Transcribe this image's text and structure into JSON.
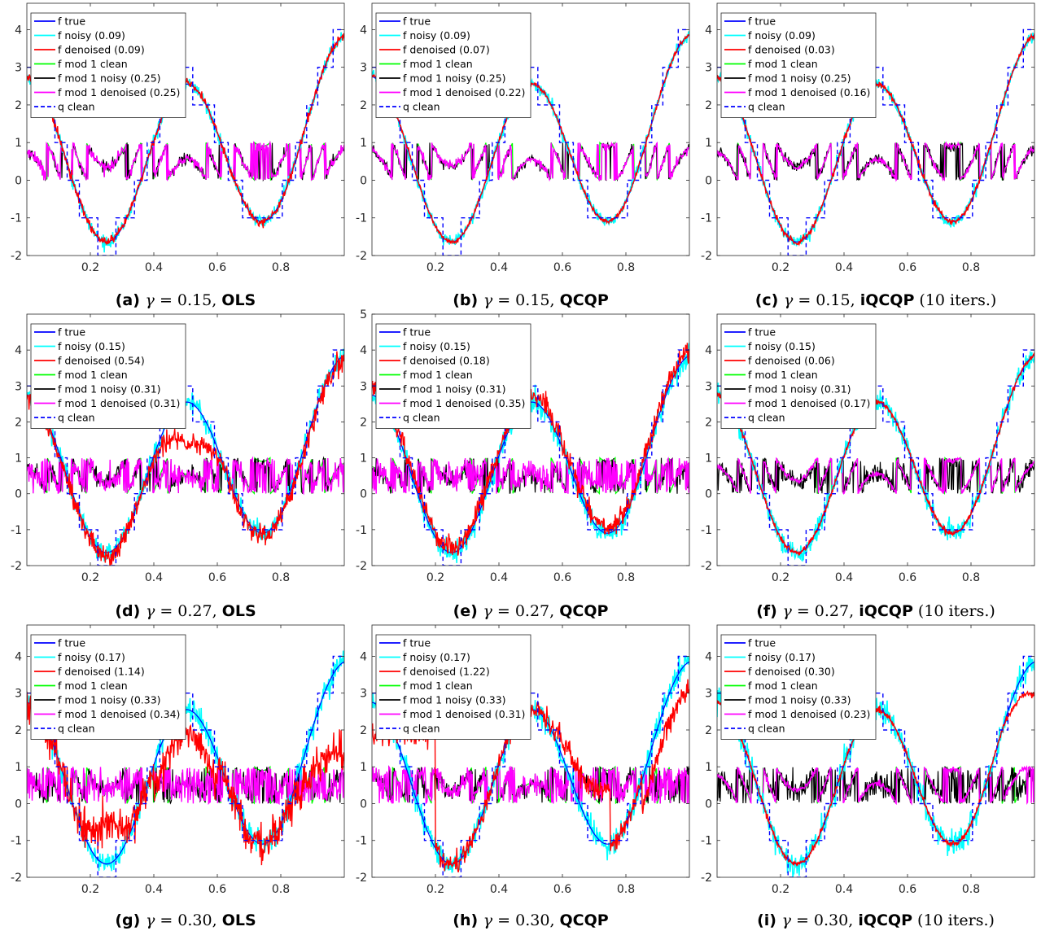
{
  "colors": {
    "f_true": "#0000ff",
    "f_noisy": "#00ffff",
    "f_denoised": "#ff0000",
    "mod_clean": "#00ff00",
    "mod_noisy": "#000000",
    "mod_denoised": "#ff00ff",
    "q_clean": "#0000ff"
  },
  "chart_data": [
    {
      "type": "line",
      "caption": {
        "label": "(a)",
        "gamma": "0.15",
        "method": "OLS",
        "extra": ""
      },
      "xlim": [
        0,
        1
      ],
      "ylim": [
        -2,
        4.7
      ],
      "xticks": [
        "0.2",
        "0.4",
        "0.6",
        "0.8"
      ],
      "yticks": [
        "-2",
        "-1",
        "0",
        "1",
        "2",
        "3",
        "4"
      ],
      "legend_position": "top-left",
      "legend": [
        "f true",
        "f noisy (0.09)",
        "f denoised (0.09)",
        "f mod 1 clean",
        "f mod 1 noisy (0.25)",
        "f mod 1 denoised (0.25)",
        "q clean"
      ]
    },
    {
      "type": "line",
      "caption": {
        "label": "(b)",
        "gamma": "0.15",
        "method": "QCQP",
        "extra": ""
      },
      "xlim": [
        0,
        1
      ],
      "ylim": [
        -2,
        4.7
      ],
      "xticks": [
        "0.2",
        "0.4",
        "0.6",
        "0.8"
      ],
      "yticks": [
        "-2",
        "-1",
        "0",
        "1",
        "2",
        "3",
        "4"
      ],
      "legend_position": "top-left",
      "legend": [
        "f true",
        "f noisy (0.09)",
        "f denoised (0.07)",
        "f mod 1 clean",
        "f mod 1 noisy (0.25)",
        "f mod 1 denoised (0.22)",
        "q clean"
      ]
    },
    {
      "type": "line",
      "caption": {
        "label": "(c)",
        "gamma": "0.15",
        "method": "iQCQP",
        "extra": "(10 iters.)"
      },
      "xlim": [
        0,
        1
      ],
      "ylim": [
        -2,
        4.7
      ],
      "xticks": [
        "0.2",
        "0.4",
        "0.6",
        "0.8"
      ],
      "yticks": [
        "-2",
        "-1",
        "0",
        "1",
        "2",
        "3",
        "4"
      ],
      "legend_position": "top-left",
      "legend": [
        "f true",
        "f noisy (0.09)",
        "f denoised (0.03)",
        "f mod 1 clean",
        "f mod 1 noisy (0.25)",
        "f mod 1 denoised (0.16)",
        "q clean"
      ]
    },
    {
      "type": "line",
      "caption": {
        "label": "(d)",
        "gamma": "0.27",
        "method": "OLS",
        "extra": ""
      },
      "xlim": [
        0,
        1
      ],
      "ylim": [
        -2,
        5
      ],
      "xticks": [
        "0.2",
        "0.4",
        "0.6",
        "0.8"
      ],
      "yticks": [
        "-2",
        "-1",
        "0",
        "1",
        "2",
        "3",
        "4"
      ],
      "legend_position": "top-left",
      "legend": [
        "f true",
        "f noisy (0.15)",
        "f denoised (0.54)",
        "f mod 1 clean",
        "f mod 1 noisy (0.31)",
        "f mod 1 denoised (0.31)",
        "q clean"
      ]
    },
    {
      "type": "line",
      "caption": {
        "label": "(e)",
        "gamma": "0.27",
        "method": "QCQP",
        "extra": ""
      },
      "xlim": [
        0,
        1
      ],
      "ylim": [
        -2,
        5
      ],
      "xticks": [
        "0.2",
        "0.4",
        "0.6",
        "0.8"
      ],
      "yticks": [
        "-2",
        "-1",
        "0",
        "1",
        "2",
        "3",
        "4",
        "5"
      ],
      "legend_position": "top-left",
      "legend": [
        "f true",
        "f noisy (0.15)",
        "f denoised (0.18)",
        "f mod 1 clean",
        "f mod 1 noisy (0.31)",
        "f mod 1 denoised (0.35)",
        "q clean"
      ]
    },
    {
      "type": "line",
      "caption": {
        "label": "(f)",
        "gamma": "0.27",
        "method": "iQCQP",
        "extra": "(10 iters.)"
      },
      "xlim": [
        0,
        1
      ],
      "ylim": [
        -2,
        5
      ],
      "xticks": [
        "0.2",
        "0.4",
        "0.6",
        "0.8"
      ],
      "yticks": [
        "-2",
        "-1",
        "0",
        "1",
        "2",
        "3",
        "4"
      ],
      "legend_position": "top-left",
      "legend": [
        "f true",
        "f noisy (0.15)",
        "f denoised (0.06)",
        "f mod 1 clean",
        "f mod 1 noisy (0.31)",
        "f mod 1 denoised (0.17)",
        "q clean"
      ]
    },
    {
      "type": "line",
      "caption": {
        "label": "(g)",
        "gamma": "0.30",
        "method": "OLS",
        "extra": ""
      },
      "xlim": [
        0,
        1
      ],
      "ylim": [
        -2,
        4.85
      ],
      "xticks": [
        "0.2",
        "0.4",
        "0.6",
        "0.8"
      ],
      "yticks": [
        "-2",
        "-1",
        "0",
        "1",
        "2",
        "3",
        "4"
      ],
      "legend_position": "top-left",
      "legend": [
        "f true",
        "f noisy (0.17)",
        "f denoised (1.14)",
        "f mod 1 clean",
        "f mod 1 noisy (0.33)",
        "f mod 1 denoised (0.34)",
        "q clean"
      ]
    },
    {
      "type": "line",
      "caption": {
        "label": "(h)",
        "gamma": "0.30",
        "method": "QCQP",
        "extra": ""
      },
      "xlim": [
        0,
        1
      ],
      "ylim": [
        -2,
        4.85
      ],
      "xticks": [
        "0.2",
        "0.4",
        "0.6",
        "0.8"
      ],
      "yticks": [
        "-2",
        "-1",
        "0",
        "1",
        "2",
        "3",
        "4"
      ],
      "legend_position": "top-left",
      "legend": [
        "f true",
        "f noisy (0.17)",
        "f denoised (1.22)",
        "f mod 1 clean",
        "f mod 1 noisy (0.33)",
        "f mod 1 denoised (0.31)",
        "q clean"
      ]
    },
    {
      "type": "line",
      "caption": {
        "label": "(i)",
        "gamma": "0.30",
        "method": "iQCQP",
        "extra": "(10 iters.)"
      },
      "xlim": [
        0,
        1
      ],
      "ylim": [
        -2,
        4.85
      ],
      "xticks": [
        "0.2",
        "0.4",
        "0.6",
        "0.8"
      ],
      "yticks": [
        "-2",
        "-1",
        "0",
        "1",
        "2",
        "3",
        "4"
      ],
      "legend_position": "top-left",
      "legend": [
        "f true",
        "f noisy (0.17)",
        "f denoised (0.30)",
        "f mod 1 clean",
        "f mod 1 noisy (0.33)",
        "f mod 1 denoised (0.23)",
        "q clean"
      ]
    }
  ]
}
